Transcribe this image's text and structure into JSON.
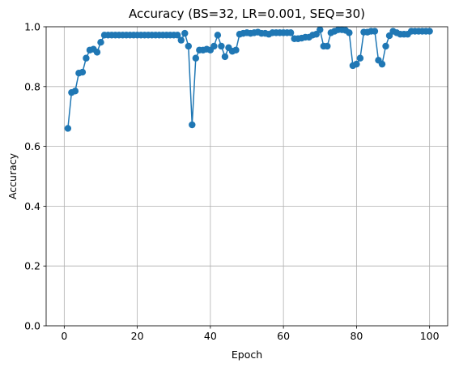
{
  "chart_data": {
    "type": "line",
    "title": "Accuracy (BS=32, LR=0.001, SEQ=30)",
    "xlabel": "Epoch",
    "ylabel": "Accuracy",
    "xlim": [
      -4.95,
      104.95
    ],
    "ylim": [
      0.0,
      1.0
    ],
    "x_ticks": [
      0,
      20,
      40,
      60,
      80,
      100
    ],
    "y_ticks": [
      0.0,
      0.2,
      0.4,
      0.6,
      0.8,
      1.0
    ],
    "x_tick_labels": [
      "0",
      "20",
      "40",
      "60",
      "80",
      "100"
    ],
    "y_tick_labels": [
      "0.0",
      "0.2",
      "0.4",
      "0.6",
      "0.8",
      "1.0"
    ],
    "grid": true,
    "legend": "none",
    "series": [
      {
        "color": "#1f77b4",
        "marker": "circle",
        "x": [
          1,
          2,
          3,
          4,
          5,
          6,
          7,
          8,
          9,
          10,
          11,
          12,
          13,
          14,
          15,
          16,
          17,
          18,
          19,
          20,
          21,
          22,
          23,
          24,
          25,
          26,
          27,
          28,
          29,
          30,
          31,
          32,
          33,
          34,
          35,
          36,
          37,
          38,
          39,
          40,
          41,
          42,
          43,
          44,
          45,
          46,
          47,
          48,
          49,
          50,
          51,
          52,
          53,
          54,
          55,
          56,
          57,
          58,
          59,
          60,
          61,
          62,
          63,
          64,
          65,
          66,
          67,
          68,
          69,
          70,
          71,
          72,
          73,
          74,
          75,
          76,
          77,
          78,
          79,
          80,
          81,
          82,
          83,
          84,
          85,
          86,
          87,
          88,
          89,
          90,
          91,
          92,
          93,
          94,
          95,
          96,
          97,
          98,
          99,
          100
        ],
        "values": [
          0.66,
          0.78,
          0.785,
          0.845,
          0.848,
          0.895,
          0.922,
          0.925,
          0.915,
          0.948,
          0.972,
          0.972,
          0.972,
          0.972,
          0.972,
          0.972,
          0.972,
          0.972,
          0.972,
          0.972,
          0.972,
          0.972,
          0.972,
          0.972,
          0.972,
          0.972,
          0.972,
          0.972,
          0.972,
          0.972,
          0.972,
          0.955,
          0.978,
          0.935,
          0.672,
          0.895,
          0.922,
          0.922,
          0.925,
          0.922,
          0.935,
          0.972,
          0.935,
          0.9,
          0.93,
          0.918,
          0.922,
          0.975,
          0.978,
          0.98,
          0.978,
          0.98,
          0.982,
          0.978,
          0.978,
          0.975,
          0.98,
          0.98,
          0.98,
          0.98,
          0.98,
          0.98,
          0.96,
          0.96,
          0.962,
          0.965,
          0.965,
          0.972,
          0.975,
          0.99,
          0.935,
          0.935,
          0.98,
          0.985,
          0.99,
          0.99,
          0.988,
          0.98,
          0.87,
          0.875,
          0.895,
          0.982,
          0.982,
          0.985,
          0.985,
          0.888,
          0.875,
          0.935,
          0.97,
          0.985,
          0.98,
          0.975,
          0.975,
          0.975,
          0.985,
          0.985,
          0.985,
          0.985,
          0.985,
          0.985
        ]
      }
    ]
  }
}
